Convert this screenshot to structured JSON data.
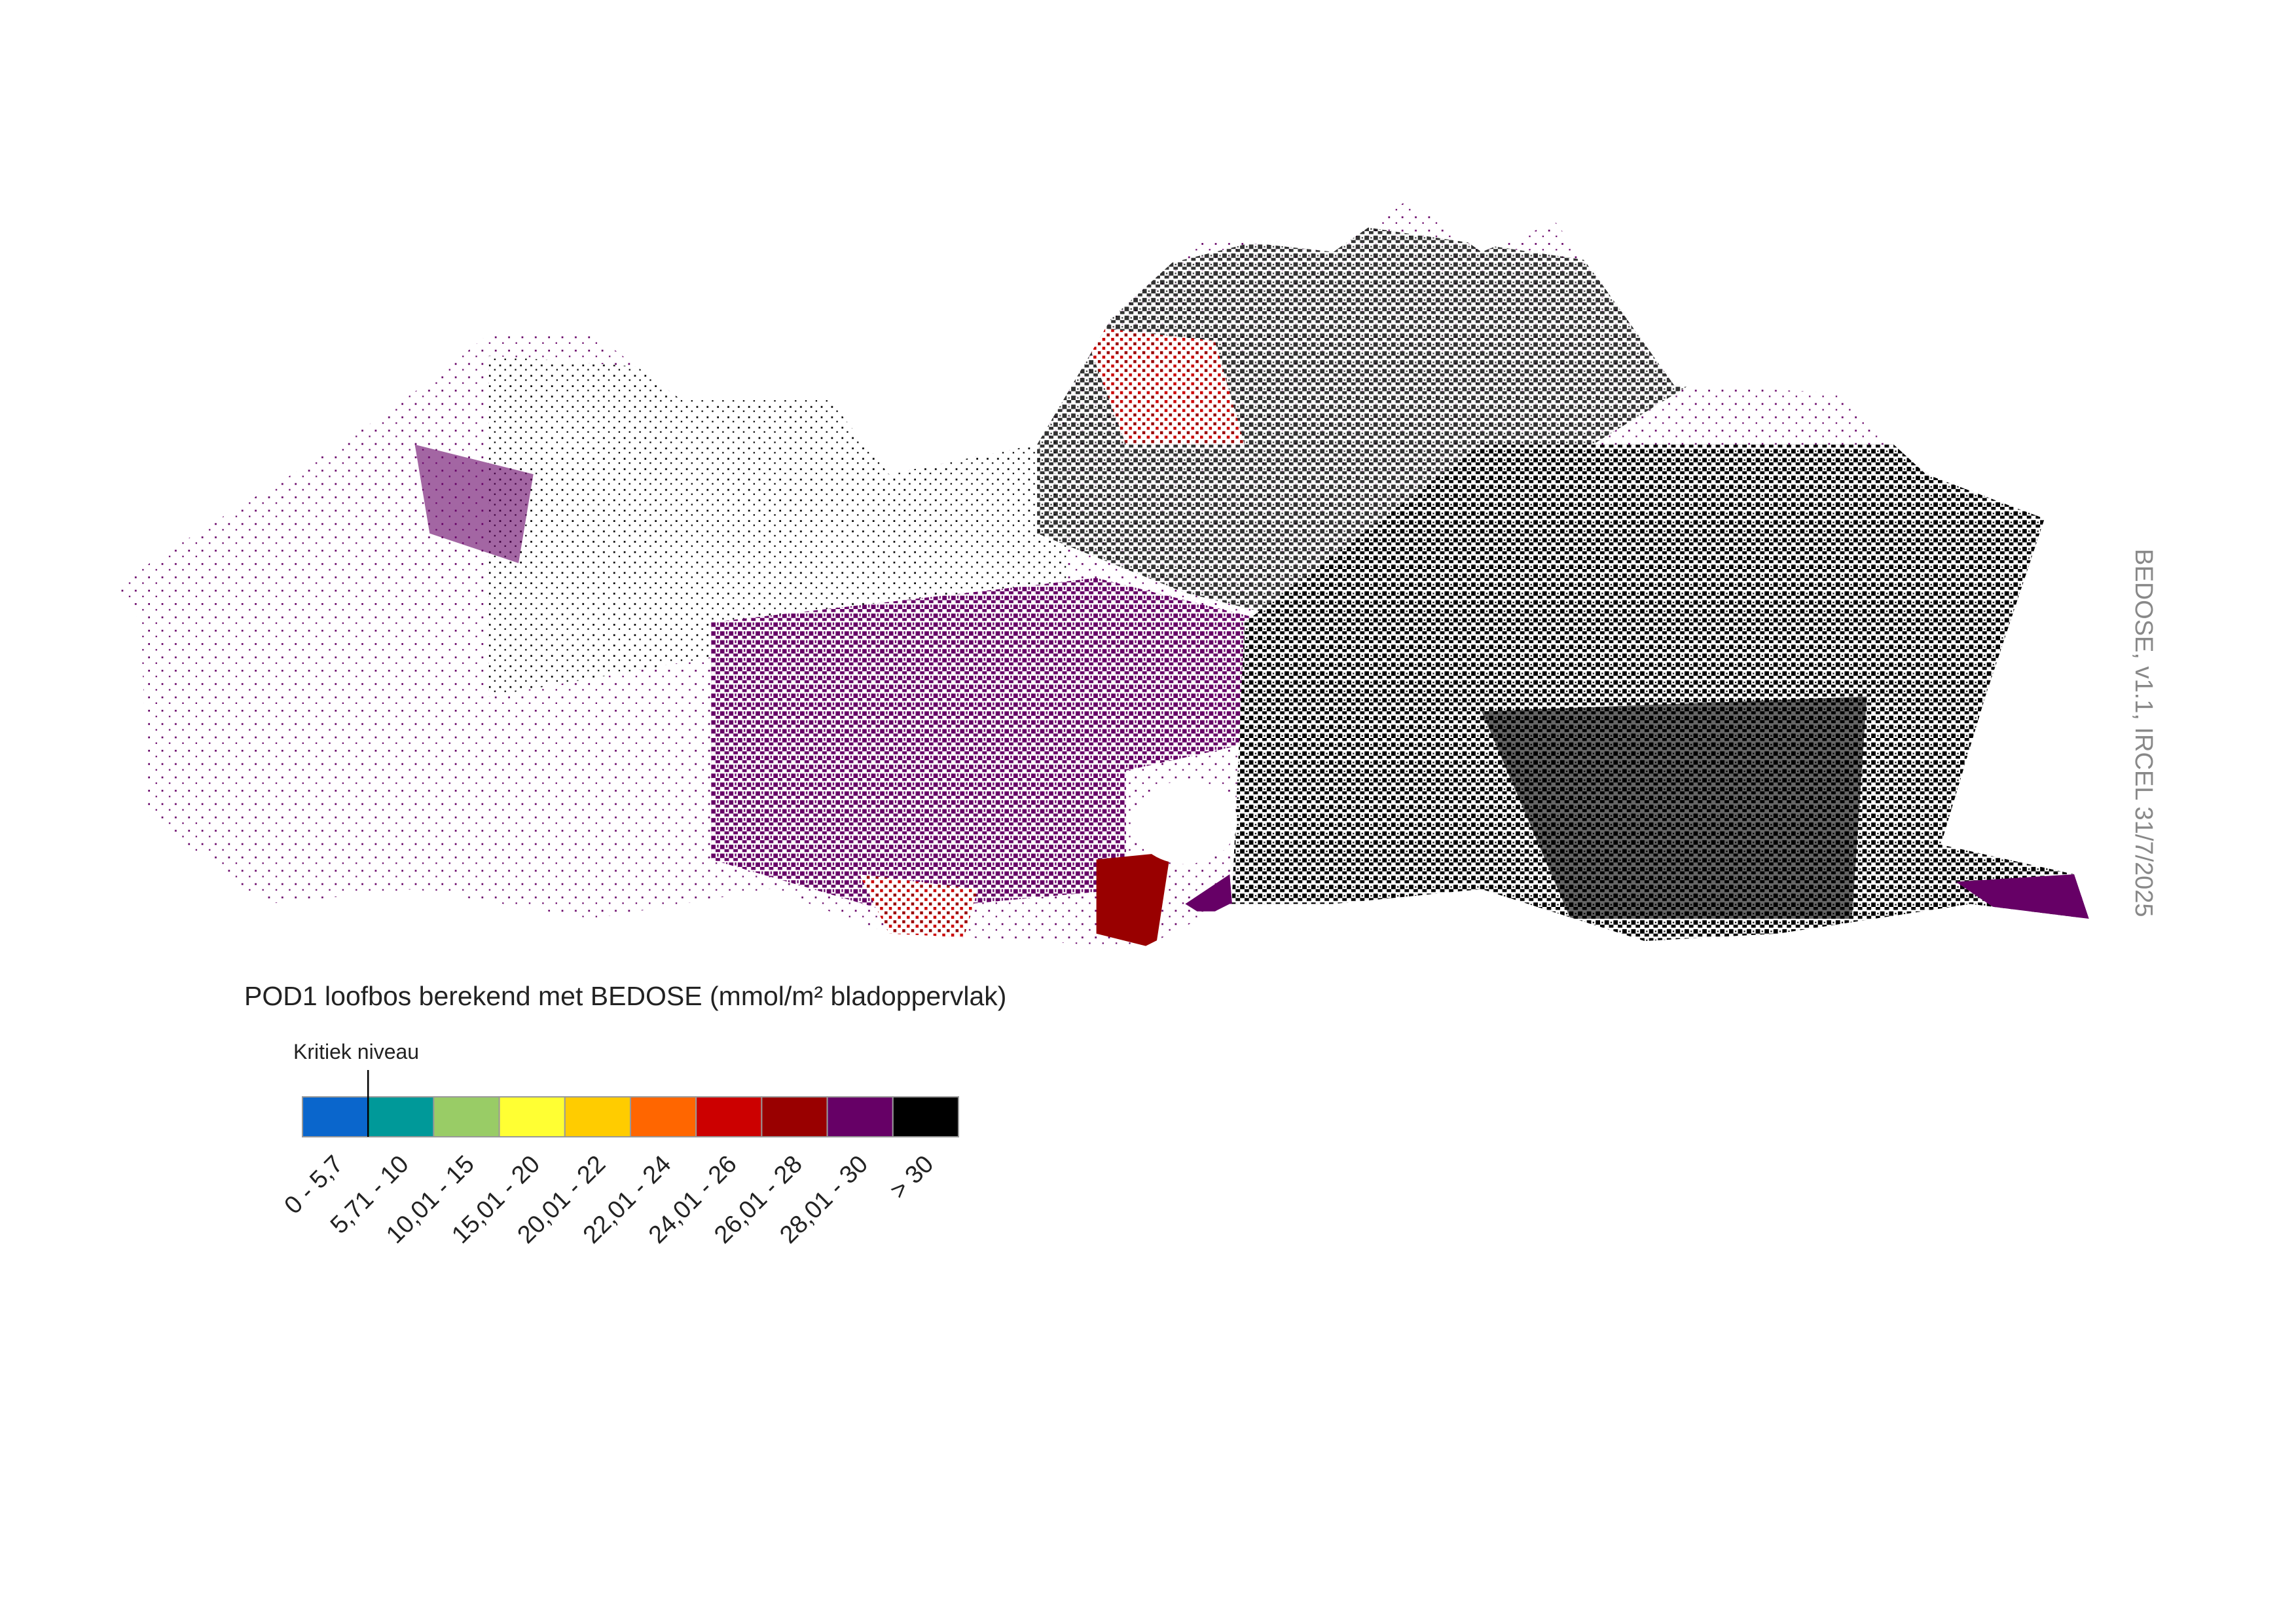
{
  "title": "POD1 loofbos berekend met BEDOSE (mmol/m² bladoppervlak)",
  "legend": {
    "critical_label": "Kritiek niveau",
    "classes": [
      {
        "label": "0 - 5,7",
        "color": "#0a66cc"
      },
      {
        "label": "5,71 - 10",
        "color": "#009999"
      },
      {
        "label": "10,01 - 15",
        "color": "#99cc66"
      },
      {
        "label": "15,01 - 20",
        "color": "#ffff33"
      },
      {
        "label": "20,01 - 22",
        "color": "#ffcc00"
      },
      {
        "label": "22,01 - 24",
        "color": "#ff6600"
      },
      {
        "label": "24,01 - 26",
        "color": "#cc0000"
      },
      {
        "label": "26,01 - 28",
        "color": "#990000"
      },
      {
        "label": "28,01 - 30",
        "color": "#660066"
      },
      {
        "label": "> 30",
        "color": "#000000"
      }
    ]
  },
  "credit": "BEDOSE, v1.1, IRCEL 31/7/2025"
}
